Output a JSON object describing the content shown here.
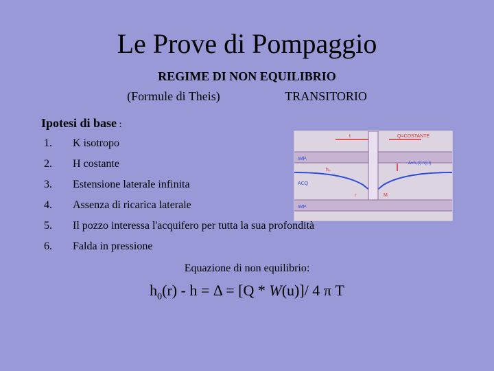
{
  "title": "Le Prove di Pompaggio",
  "subtitle": "REGIME DI NON EQUILIBRIO",
  "formule_left": "(Formule di Theis)",
  "formule_right": "TRANSITORIO",
  "ipotesi_label": "Ipotesi di base",
  "items": [
    {
      "n": "1.",
      "text": "K isotropo"
    },
    {
      "n": "2.",
      "text": "H costante"
    },
    {
      "n": "3.",
      "text": "Estensione laterale infinita"
    },
    {
      "n": "4.",
      "text": "Assenza di ricarica laterale"
    },
    {
      "n": "5.",
      "text": "Il pozzo interessa l'acquifero per tutta la sua profondità"
    },
    {
      "n": "6.",
      "text": "Falda in pressione"
    }
  ],
  "eq_label": "Equazione di non equilibrio:",
  "equation_prefix": "h",
  "equation_sub": "0",
  "equation_mid1": "(r) - h = ",
  "equation_delta": "Δ",
  "equation_mid2": " = [Q * ",
  "equation_W": "W",
  "equation_mid3": "(u)]/ 4 ",
  "equation_pi": "π",
  "equation_T": " T",
  "sketch": {
    "bg": "#dcd4e0",
    "ground": "#b08bc0",
    "red": "#d92c2c",
    "blue": "#2c4cd9",
    "labels": {
      "imp_top": "IMP.",
      "acq": "ACQ",
      "imp_bot": "IMP.",
      "t": "t",
      "q": "Q = COSTANTE",
      "delta": "Δ = h₀(t) - h(r,t)",
      "ho": "h₀",
      "r": "r",
      "M": "M"
    }
  }
}
